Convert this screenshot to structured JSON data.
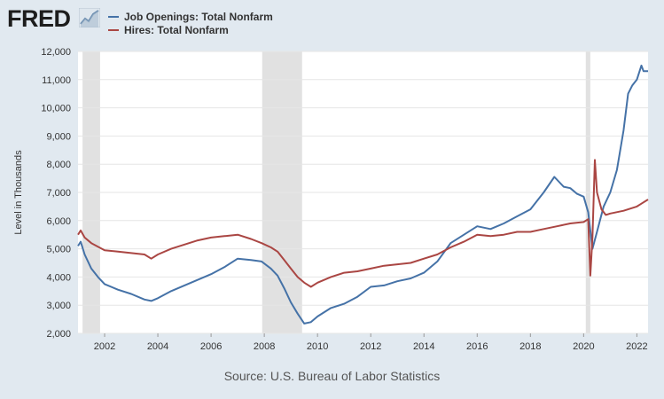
{
  "logo": {
    "text": "FRED",
    "icon": "chart-line-icon"
  },
  "legend": [
    {
      "label": "Job Openings: Total Nonfarm",
      "color": "#4572a7"
    },
    {
      "label": "Hires: Total Nonfarm",
      "color": "#aa4643"
    }
  ],
  "source": "Source: U.S. Bureau of Labor Statistics",
  "chart_data": {
    "type": "line",
    "xlabel": "",
    "ylabel": "Level in Thousands",
    "xlim": [
      2001.0,
      2022.42
    ],
    "ylim": [
      2000,
      12000
    ],
    "yticks": [
      2000,
      3000,
      4000,
      5000,
      6000,
      7000,
      8000,
      9000,
      10000,
      11000,
      12000
    ],
    "ytick_labels": [
      "2,000",
      "3,000",
      "4,000",
      "5,000",
      "6,000",
      "7,000",
      "8,000",
      "9,000",
      "10,000",
      "11,000",
      "12,000"
    ],
    "xticks": [
      2002,
      2004,
      2006,
      2008,
      2010,
      2012,
      2014,
      2016,
      2018,
      2020,
      2022
    ],
    "xtick_labels": [
      "2002",
      "2004",
      "2006",
      "2008",
      "2010",
      "2012",
      "2014",
      "2016",
      "2018",
      "2020",
      "2022"
    ],
    "grid": true,
    "legend_position": "top-left",
    "recessions": [
      [
        2001.17,
        2001.83
      ],
      [
        2007.92,
        2009.42
      ],
      [
        2020.08,
        2020.25
      ]
    ],
    "series": [
      {
        "name": "Job Openings: Total Nonfarm",
        "color": "#4572a7",
        "x": [
          2001.0,
          2001.1,
          2001.25,
          2001.5,
          2001.75,
          2002.0,
          2002.5,
          2003.0,
          2003.5,
          2003.75,
          2004.0,
          2004.5,
          2005.0,
          2005.5,
          2006.0,
          2006.5,
          2007.0,
          2007.5,
          2007.9,
          2008.25,
          2008.5,
          2008.75,
          2009.0,
          2009.25,
          2009.5,
          2009.75,
          2010.0,
          2010.5,
          2011.0,
          2011.5,
          2012.0,
          2012.5,
          2013.0,
          2013.5,
          2014.0,
          2014.5,
          2015.0,
          2015.5,
          2016.0,
          2016.5,
          2017.0,
          2017.5,
          2018.0,
          2018.5,
          2018.9,
          2019.25,
          2019.5,
          2019.75,
          2020.0,
          2020.17,
          2020.33,
          2020.5,
          2020.75,
          2021.0,
          2021.25,
          2021.5,
          2021.67,
          2021.83,
          2022.0,
          2022.17,
          2022.25,
          2022.42
        ],
        "values": [
          5100,
          5250,
          4800,
          4300,
          4000,
          3750,
          3550,
          3400,
          3200,
          3150,
          3250,
          3500,
          3700,
          3900,
          4100,
          4350,
          4650,
          4600,
          4550,
          4300,
          4050,
          3600,
          3100,
          2700,
          2350,
          2400,
          2600,
          2900,
          3050,
          3300,
          3650,
          3700,
          3850,
          3950,
          4150,
          4550,
          5200,
          5500,
          5800,
          5700,
          5900,
          6150,
          6400,
          7000,
          7550,
          7200,
          7150,
          6950,
          6850,
          6300,
          5000,
          5600,
          6500,
          7000,
          7800,
          9200,
          10500,
          10800,
          11000,
          11500,
          11300,
          11300
        ]
      },
      {
        "name": "Hires: Total Nonfarm",
        "color": "#aa4643",
        "x": [
          2001.0,
          2001.1,
          2001.25,
          2001.5,
          2002.0,
          2002.5,
          2003.0,
          2003.5,
          2003.75,
          2004.0,
          2004.5,
          2005.0,
          2005.5,
          2006.0,
          2006.5,
          2007.0,
          2007.5,
          2007.9,
          2008.25,
          2008.5,
          2008.75,
          2009.0,
          2009.25,
          2009.5,
          2009.75,
          2010.0,
          2010.5,
          2011.0,
          2011.5,
          2012.0,
          2012.5,
          2013.0,
          2013.5,
          2014.0,
          2014.5,
          2015.0,
          2015.5,
          2016.0,
          2016.5,
          2017.0,
          2017.5,
          2018.0,
          2018.5,
          2019.0,
          2019.5,
          2020.0,
          2020.17,
          2020.25,
          2020.33,
          2020.42,
          2020.5,
          2020.67,
          2020.83,
          2021.0,
          2021.5,
          2022.0,
          2022.17,
          2022.42
        ],
        "values": [
          5500,
          5650,
          5400,
          5200,
          4950,
          4900,
          4850,
          4800,
          4650,
          4800,
          5000,
          5150,
          5300,
          5400,
          5450,
          5500,
          5350,
          5200,
          5050,
          4900,
          4600,
          4300,
          4000,
          3800,
          3650,
          3800,
          4000,
          4150,
          4200,
          4300,
          4400,
          4450,
          4500,
          4650,
          4800,
          5050,
          5250,
          5500,
          5450,
          5500,
          5600,
          5600,
          5700,
          5800,
          5900,
          5950,
          6050,
          4050,
          5400,
          8150,
          7000,
          6400,
          6200,
          6250,
          6350,
          6500,
          6600,
          6750
        ]
      }
    ]
  }
}
